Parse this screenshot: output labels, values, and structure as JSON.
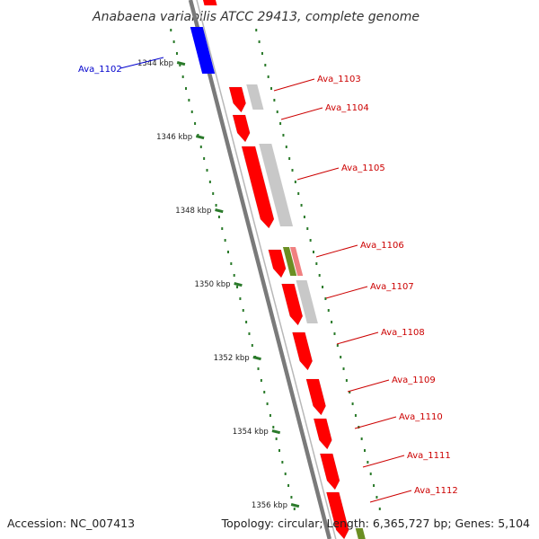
{
  "title": "Anabaena variabilis ATCC 29413, complete genome",
  "footer": {
    "accession": "Accession: NC_007413",
    "topology": "Topology: circular; Length: 6,365,727 bp; Genes: 5,104"
  },
  "colors": {
    "forward_gene": "#ff0000",
    "reverse_gene": "#c8c8c8",
    "selected_gene": "#0000ff",
    "secondary_gene": "#6b8e23",
    "backbone": "#7a7a7a",
    "ticks": "#2a7a2a",
    "label_forward": "#cc0000",
    "label_selected": "#0000cc"
  },
  "scale_ticks": [
    "1344 kbp",
    "1346 kbp",
    "1348 kbp",
    "1350 kbp",
    "1352 kbp",
    "1354 kbp",
    "1356 kbp"
  ],
  "gene_labels": [
    {
      "id": "Ava_1102",
      "text": "Ava_1102",
      "kind": "selected"
    },
    {
      "id": "Ava_1103",
      "text": "Ava_1103",
      "kind": "forward"
    },
    {
      "id": "Ava_1104",
      "text": "Ava_1104",
      "kind": "forward"
    },
    {
      "id": "Ava_1105",
      "text": "Ava_1105",
      "kind": "forward"
    },
    {
      "id": "Ava_1106",
      "text": "Ava_1106",
      "kind": "forward"
    },
    {
      "id": "Ava_1107",
      "text": "Ava_1107",
      "kind": "forward"
    },
    {
      "id": "Ava_1108",
      "text": "Ava_1108",
      "kind": "forward"
    },
    {
      "id": "Ava_1109",
      "text": "Ava_1109",
      "kind": "forward"
    },
    {
      "id": "Ava_1110",
      "text": "Ava_1110",
      "kind": "forward"
    },
    {
      "id": "Ava_1111",
      "text": "Ava_1111",
      "kind": "forward"
    },
    {
      "id": "Ava_1112",
      "text": "Ava_1112",
      "kind": "forward"
    }
  ]
}
